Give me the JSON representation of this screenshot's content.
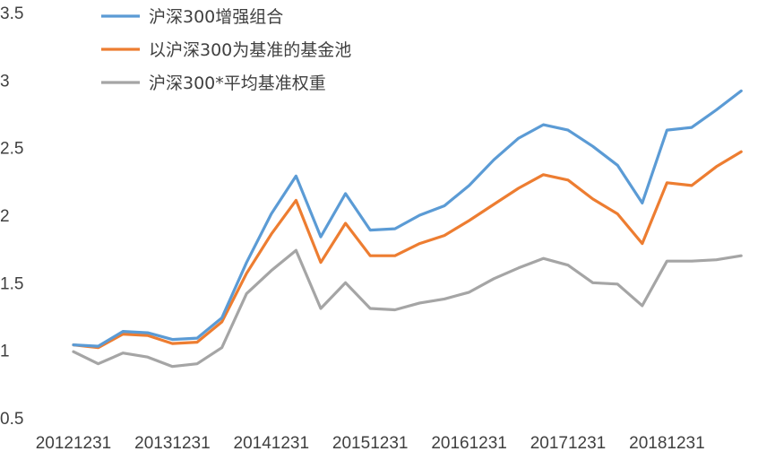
{
  "chart_data": {
    "type": "line",
    "title": "",
    "xlabel": "",
    "ylabel": "",
    "ylim": [
      0.5,
      3.5
    ],
    "yticks": [
      "0.5",
      "1",
      "1.5",
      "2",
      "2.5",
      "3",
      "3.5"
    ],
    "xtick_labels": [
      "20121231",
      "20131231",
      "20141231",
      "20151231",
      "20161231",
      "20171231",
      "20181231"
    ],
    "grid": false,
    "legend_position": "top-left",
    "series": [
      {
        "name": "沪深300增强组合",
        "color": "#5B9BD5",
        "values": [
          1.04,
          1.03,
          1.14,
          1.13,
          1.08,
          1.09,
          1.24,
          1.65,
          2.01,
          2.29,
          1.84,
          2.16,
          1.89,
          1.9,
          2.0,
          2.07,
          2.22,
          2.41,
          2.57,
          2.67,
          2.63,
          2.51,
          2.37,
          2.09,
          2.63,
          2.65,
          2.78,
          2.92
        ]
      },
      {
        "name": "以沪深300为基准的基金池",
        "color": "#ED7D31",
        "values": [
          1.04,
          1.02,
          1.12,
          1.11,
          1.05,
          1.06,
          1.21,
          1.57,
          1.86,
          2.11,
          1.65,
          1.94,
          1.7,
          1.7,
          1.79,
          1.85,
          1.96,
          2.08,
          2.2,
          2.3,
          2.26,
          2.12,
          2.01,
          1.79,
          2.24,
          2.22,
          2.36,
          2.47
        ]
      },
      {
        "name": "沪深300*平均基准权重",
        "color": "#A5A5A5",
        "values": [
          0.99,
          0.9,
          0.98,
          0.95,
          0.88,
          0.9,
          1.02,
          1.42,
          1.59,
          1.74,
          1.31,
          1.5,
          1.31,
          1.3,
          1.35,
          1.38,
          1.43,
          1.53,
          1.61,
          1.68,
          1.63,
          1.5,
          1.49,
          1.33,
          1.66,
          1.66,
          1.67,
          1.7
        ]
      }
    ]
  }
}
